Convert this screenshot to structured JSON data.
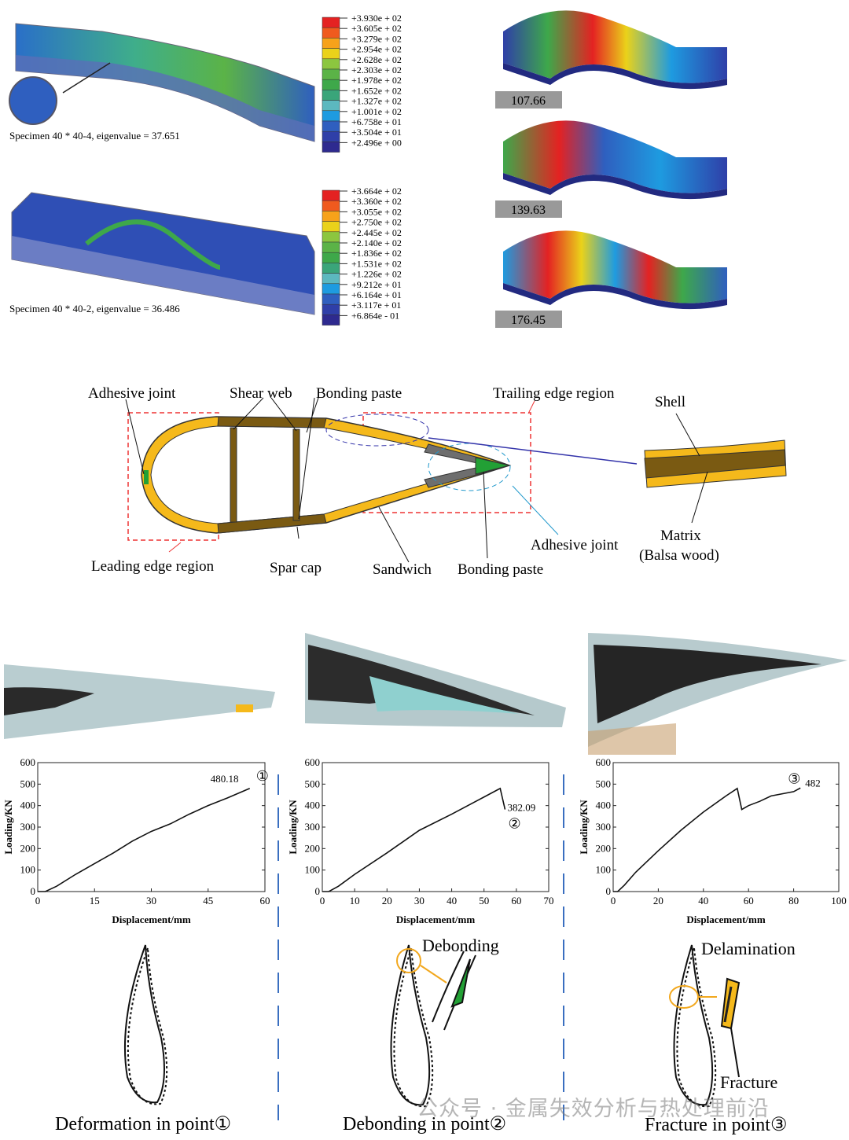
{
  "fea": {
    "specimen1_label": "Specimen 40 * 40-4, eigenvalue = 37.651",
    "specimen2_label": "Specimen 40 * 40-2, eigenvalue = 36.486",
    "legend1": [
      "+3.930e + 02",
      "+3.605e + 02",
      "+3.279e + 02",
      "+2.954e + 02",
      "+2.628e + 02",
      "+2.303e + 02",
      "+1.978e + 02",
      "+1.652e + 02",
      "+1.327e + 02",
      "+1.001e + 02",
      "+6.758e + 01",
      "+3.504e + 01",
      "+2.496e + 00"
    ],
    "legend2": [
      "+3.664e + 02",
      "+3.360e + 02",
      "+3.055e + 02",
      "+2.750e + 02",
      "+2.445e + 02",
      "+2.140e + 02",
      "+1.836e + 02",
      "+1.531e + 02",
      "+1.226e + 02",
      "+9.212e + 01",
      "+6.164e + 01",
      "+3.117e + 01",
      "+6.864e - 01"
    ],
    "legend_colors": [
      "#e42222",
      "#f05a1e",
      "#f7a21a",
      "#ead21a",
      "#8cc63f",
      "#5bb347",
      "#3ea84a",
      "#3aa57a",
      "#5cb8bf",
      "#1e9be0",
      "#2f5fbf",
      "#2f3fa8",
      "#2e2a8f"
    ],
    "modes": [
      "107.66",
      "139.63",
      "176.45"
    ]
  },
  "diagram": {
    "labels": {
      "adhesive_joint_top": "Adhesive joint",
      "shear_web": "Shear web",
      "bonding_paste_top": "Bonding paste",
      "trailing_edge_region": "Trailing edge region",
      "shell": "Shell",
      "leading_edge_region": "Leading edge region",
      "spar_cap": "Spar cap",
      "sandwich": "Sandwich",
      "bonding_paste_bottom": "Bonding paste",
      "adhesive_joint_bottom": "Adhesive joint",
      "matrix": "Matrix",
      "balsa_wood": "(Balsa wood)"
    },
    "colors": {
      "shell": "#f5b91b",
      "spar": "#7a5a12",
      "adhesive": "#22a035",
      "trailing": "#6e6e6e"
    }
  },
  "chart_data": [
    {
      "type": "line",
      "xlabel": "Displacement/mm",
      "ylabel": "Loading/KN",
      "xlim": [
        0,
        60
      ],
      "ylim": [
        0,
        600
      ],
      "xticks": [
        0,
        15,
        30,
        45,
        60
      ],
      "yticks": [
        0,
        100,
        200,
        300,
        400,
        500,
        600
      ],
      "x": [
        0,
        2,
        5,
        10,
        15,
        20,
        25,
        30,
        35,
        40,
        45,
        50,
        56
      ],
      "y": [
        0,
        0,
        25,
        80,
        130,
        180,
        235,
        280,
        315,
        360,
        400,
        435,
        480.18
      ],
      "annotation": "480.18",
      "marker": "①"
    },
    {
      "type": "line",
      "xlabel": "Displacement/mm",
      "ylabel": "Loading/KN",
      "xlim": [
        0,
        70
      ],
      "ylim": [
        0,
        600
      ],
      "xticks": [
        0,
        10,
        20,
        30,
        40,
        50,
        60,
        70
      ],
      "yticks": [
        0,
        100,
        200,
        300,
        400,
        500,
        600
      ],
      "x": [
        0,
        2,
        5,
        10,
        20,
        30,
        40,
        50,
        55,
        56.5
      ],
      "y": [
        0,
        0,
        25,
        80,
        180,
        285,
        360,
        440,
        480,
        382.09
      ],
      "annotation": "382.09",
      "marker": "②"
    },
    {
      "type": "line",
      "xlabel": "Displacement/mm",
      "ylabel": "Loading/KN",
      "xlim": [
        0,
        100
      ],
      "ylim": [
        0,
        600
      ],
      "xticks": [
        0,
        20,
        40,
        60,
        80,
        100
      ],
      "yticks": [
        0,
        100,
        200,
        300,
        400,
        500,
        600
      ],
      "x": [
        0,
        2,
        5,
        10,
        20,
        30,
        40,
        50,
        55,
        57,
        60,
        65,
        70,
        80,
        83
      ],
      "y": [
        0,
        0,
        30,
        90,
        190,
        285,
        370,
        445,
        480,
        382,
        400,
        420,
        445,
        465,
        482
      ],
      "annotation": "482",
      "marker": "③"
    }
  ],
  "failure": {
    "debonding_label": "Debonding",
    "delamination_label": "Delamination",
    "fracture_label": "Fracture",
    "captions": [
      "Deformation in point①",
      "Debonding in point②",
      "Fracture in point③"
    ]
  },
  "watermark": "公众号 · 金属失效分析与热处理前沿"
}
